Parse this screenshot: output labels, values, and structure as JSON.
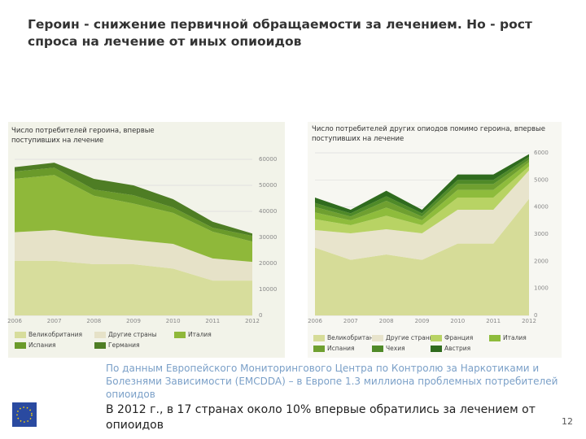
{
  "slide": {
    "title": "Героин - снижение первичной обращаемости за лечением. Но - рост спроса на лечение от иных опиоидов",
    "note": "По данным Европейского Мониторингового Центра по Контролю за Наркотиками и Болезнями Зависимости (EMCDDA) – в Европе 1.3 миллиона проблемных потребителей опиоидов",
    "statement": "В 2012 г., в 17 странах около 10% впервые обратились за лечением от опиоидов",
    "page": "12"
  },
  "chart_data": [
    {
      "type": "stacked_area",
      "title": "Число потребителей героина, впервые поступивших на лечение",
      "categories": [
        "2006",
        "2007",
        "2008",
        "2009",
        "2010",
        "2011",
        "2012"
      ],
      "ylim": [
        0,
        60000
      ],
      "yticks": [
        0,
        10000,
        20000,
        30000,
        40000,
        50000,
        60000
      ],
      "grid": true,
      "series": [
        {
          "name": "Великобритания",
          "color": "#d7dd9c",
          "values": [
            21000,
            21000,
            19700,
            19700,
            18000,
            13400,
            13400
          ]
        },
        {
          "name": "Другие страны",
          "color": "#e6e2c8",
          "values": [
            11000,
            11800,
            10900,
            9300,
            9500,
            8500,
            7200
          ]
        },
        {
          "name": "Италия",
          "color": "#8fb83a",
          "values": [
            20500,
            21200,
            15400,
            14000,
            11900,
            10300,
            7800
          ]
        },
        {
          "name": "Испания",
          "color": "#6a9a2a",
          "values": [
            2800,
            2800,
            2400,
            3200,
            2100,
            1500,
            2200
          ]
        },
        {
          "name": "Германия",
          "color": "#4e7d24",
          "values": [
            1700,
            1900,
            4100,
            3800,
            3200,
            2300,
            900
          ]
        }
      ]
    },
    {
      "type": "stacked_area",
      "title": "Число потребителей других опиодов помимо героина, впервые поступивших на лечение",
      "categories": [
        "2006",
        "2007",
        "2008",
        "2009",
        "2010",
        "2011",
        "2012"
      ],
      "ylim": [
        0,
        6000
      ],
      "yticks": [
        0,
        1000,
        2000,
        3000,
        4000,
        5000,
        6000
      ],
      "grid": true,
      "series": [
        {
          "name": "Великобритания",
          "color": "#d6dc98",
          "values": [
            2500,
            2050,
            2250,
            2050,
            2650,
            2650,
            4300
          ]
        },
        {
          "name": "Другие страны",
          "color": "#e8e4cc",
          "values": [
            650,
            980,
            930,
            980,
            1250,
            1250,
            1050
          ]
        },
        {
          "name": "Франция",
          "color": "#b8d364",
          "values": [
            400,
            300,
            500,
            300,
            450,
            450,
            150
          ]
        },
        {
          "name": "Италия",
          "color": "#8ebc3c",
          "values": [
            250,
            180,
            300,
            180,
            280,
            280,
            150
          ]
        },
        {
          "name": "Испания",
          "color": "#6fa030",
          "values": [
            200,
            140,
            250,
            140,
            220,
            220,
            100
          ]
        },
        {
          "name": "Чехия",
          "color": "#4f8a28",
          "values": [
            150,
            120,
            170,
            120,
            150,
            150,
            100
          ]
        },
        {
          "name": "Австрия",
          "color": "#2f6b1e",
          "values": [
            200,
            130,
            200,
            130,
            200,
            200,
            100
          ]
        }
      ]
    }
  ]
}
